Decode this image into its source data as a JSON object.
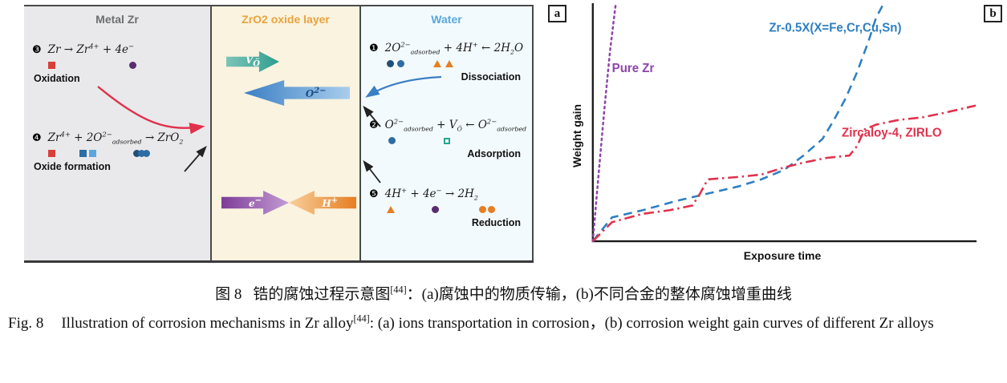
{
  "colors": {
    "purple": "#8e44ad",
    "blue": "#2e7fc2",
    "red": "#e0314b",
    "teal": "#2e9e8f",
    "orange": "#e67e22",
    "metal_bg": "#e9e9eb",
    "oxide_bg": "#faf3e0",
    "water_bg": "#f3fafd",
    "metal_title": "#6d6e71",
    "oxide_title": "#e8a33d",
    "water_title": "#5aa7dd",
    "red_icon": "#d8403a",
    "purple_icon": "#5b2c6f",
    "blue_icon": "#2e6da4",
    "darkblue_icon": "#1f4e79",
    "lightblue_icon": "#5aa7dd",
    "teal_icon": "#27a596",
    "orange_icon": "#e67e22"
  },
  "panel_a": {
    "label": "a",
    "metal": {
      "title": "Metal Zr",
      "reactions": [
        {
          "num": "❸",
          "eq": "Zr → Zr^{4+} + 4e^{−}",
          "label": "Oxidation",
          "symbols": [
            {
              "shape": "square",
              "color": "red_icon",
              "name": "zr-atom-icon",
              "ml": 6
            },
            {
              "shape": "circle",
              "color": "purple_icon",
              "name": "electron-icon",
              "ml": 92
            }
          ]
        },
        {
          "num": "❹",
          "eq": "Zr^{4+} + 2O^{2−}_{adsorbed} → ZrO_{2}",
          "label": "Oxide formation",
          "symbols": [
            {
              "shape": "square",
              "color": "red_icon",
              "name": "zr-ion-icon",
              "ml": 6
            },
            {
              "shape": "square",
              "color": "blue_icon",
              "name": "oxygen-ion-icon",
              "ml": 30
            },
            {
              "shape": "square",
              "color": "lightblue_icon",
              "name": "oxygen-ion-icon",
              "ml": 3
            },
            {
              "shape": "circle",
              "color": "darkblue_icon",
              "name": "zro2-molecule-icon",
              "ml": 46
            },
            {
              "shape": "circle",
              "color": "blue_icon",
              "name": "zro2-molecule-icon",
              "ml": -3
            },
            {
              "shape": "circle",
              "color": "blue_icon",
              "name": "zro2-molecule-icon",
              "ml": -3
            }
          ]
        }
      ]
    },
    "oxide": {
      "title": "ZrO2 oxide layer",
      "arrows": [
        {
          "label": "V_{Ö}",
          "direction": "right"
        },
        {
          "label": "O^{2−}",
          "direction": "left"
        },
        {
          "label": "e^{−}",
          "direction": "right"
        },
        {
          "label": "H^{+}",
          "direction": "left"
        }
      ]
    },
    "water": {
      "title": "Water",
      "reactions": [
        {
          "num": "❶",
          "eq": "2O^{2−}_{adsorbed} + 4H^{+} ← 2H_{2}O",
          "label": "Dissociation",
          "symbols": [
            {
              "shape": "circle",
              "color": "darkblue_icon",
              "name": "oxygen-ion-icon",
              "ml": 8
            },
            {
              "shape": "circle",
              "color": "blue_icon",
              "name": "oxygen-ion-icon",
              "ml": 4
            },
            {
              "shape": "triangle",
              "color": "orange_icon",
              "name": "proton-icon",
              "ml": 36
            },
            {
              "shape": "triangle",
              "color": "orange_icon",
              "name": "proton-icon",
              "ml": 5
            }
          ]
        },
        {
          "num": "❷",
          "eq": "O^{2−}_{adsorbed} + V_{Ö} ← O^{2−}_{adsorbed}",
          "label": "Adsorption",
          "symbols": [
            {
              "shape": "circle",
              "color": "blue_icon",
              "name": "oxygen-ion-icon",
              "ml": 10
            },
            {
              "shape": "square-outline",
              "color": "teal_icon",
              "name": "oxygen-vacancy-icon",
              "ml": 60
            }
          ]
        },
        {
          "num": "❺",
          "eq": "4H^{+} + 4e^{−} → 2H_{2}",
          "label": "Reduction",
          "symbols": [
            {
              "shape": "triangle",
              "color": "orange_icon",
              "name": "proton-icon",
              "ml": 8
            },
            {
              "shape": "circle",
              "color": "purple_icon",
              "name": "electron-icon",
              "ml": 46
            },
            {
              "shape": "circle",
              "color": "orange_icon",
              "name": "hydrogen-molecule-icon",
              "ml": 50
            },
            {
              "shape": "circle",
              "color": "orange_icon",
              "name": "hydrogen-molecule-icon",
              "ml": 2
            }
          ]
        }
      ]
    }
  },
  "panel_b": {
    "label": "b"
  },
  "chart_data": {
    "type": "line",
    "title": "",
    "xlabel": "Exposure time",
    "ylabel": "Weight gain",
    "xlim": [
      0,
      1
    ],
    "ylim": [
      0,
      1
    ],
    "grid": false,
    "legend_position": "inline-annotations",
    "series": [
      {
        "name": "Pure Zr",
        "color": "#8e44ad",
        "style": "dotted",
        "x": [
          0,
          0.015,
          0.03,
          0.045,
          0.06
        ],
        "y": [
          0,
          0.28,
          0.55,
          0.8,
          1.0
        ]
      },
      {
        "name": "Zr-0.5X(X=Fe,Cr,Cu,Sn)",
        "color": "#2e7fc2",
        "style": "dashed",
        "x": [
          0,
          0.05,
          0.13,
          0.22,
          0.3,
          0.38,
          0.44,
          0.5,
          0.55,
          0.6,
          0.63,
          0.66,
          0.69,
          0.72,
          0.74,
          0.76
        ],
        "y": [
          0,
          0.1,
          0.13,
          0.17,
          0.2,
          0.23,
          0.26,
          0.3,
          0.36,
          0.43,
          0.51,
          0.6,
          0.71,
          0.84,
          0.94,
          1.0
        ]
      },
      {
        "name": "Zircaloy-4, ZIRLO",
        "color": "#e0314b",
        "style": "dashdot",
        "x": [
          0,
          0.05,
          0.13,
          0.2,
          0.26,
          0.28,
          0.3,
          0.38,
          0.44,
          0.5,
          0.55,
          0.61,
          0.67,
          0.69,
          0.71,
          0.74,
          0.8,
          0.86,
          0.92,
          1.0
        ],
        "y": [
          0,
          0.08,
          0.115,
          0.13,
          0.15,
          0.2,
          0.26,
          0.27,
          0.28,
          0.31,
          0.33,
          0.35,
          0.36,
          0.4,
          0.47,
          0.49,
          0.51,
          0.52,
          0.54,
          0.57
        ]
      }
    ],
    "annotations": [
      {
        "text": "Pure Zr",
        "color": "#8e44ad",
        "x": 0.05,
        "y": 0.71
      },
      {
        "text": "Zr-0.5X(X=Fe,Cr,Cu,Sn)",
        "color": "#2e7fc2",
        "x": 0.46,
        "y": 0.88
      },
      {
        "text": "Zircaloy-4, ZIRLO",
        "color": "#e0314b",
        "x": 0.65,
        "y": 0.44
      }
    ]
  },
  "caption": {
    "zh": {
      "label": "图 8",
      "before_ref": "锆的腐蚀过程示意图",
      "ref": "[44]",
      "after_ref": "：(a)腐蚀中的物质传输，(b)不同合金的整体腐蚀增重曲线"
    },
    "en": {
      "label": "Fig. 8",
      "before_ref": "Illustration of corrosion mechanisms in Zr alloy",
      "ref": "[44]",
      "after_ref": ": (a) ions transportation in corrosion，(b) corrosion weight gain curves of different Zr alloys"
    }
  }
}
